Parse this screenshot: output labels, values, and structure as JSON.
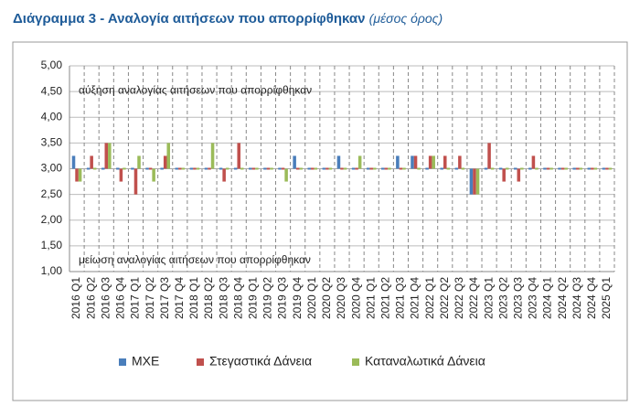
{
  "chart_data": {
    "type": "bar",
    "title": "Διάγραμμα 3 - Αναλογία αιτήσεων που απορρίφθηκαν",
    "subtitle": "(μέσος όρος)",
    "annotations": [
      "αύξηση αναλογίας αιτήσεων που απορρίφθηκαν",
      "μείωση αναλογίας αιτήσεων που απορρίφθηκαν"
    ],
    "baseline": 3,
    "categories": [
      "2016 Q1",
      "2016 Q2",
      "2016 Q3",
      "2016 Q4",
      "2017 Q1",
      "2017 Q2",
      "2017 Q3",
      "2017 Q4",
      "2018 Q1",
      "2018 Q2",
      "2018 Q3",
      "2018 Q4",
      "2019 Q1",
      "2019 Q2",
      "2019 Q3",
      "2019 Q4",
      "2020 Q1",
      "2020 Q2",
      "2020 Q3",
      "2020 Q4",
      "2021 Q1",
      "2021 Q2",
      "2021 Q3",
      "2021 Q4",
      "2022 Q1",
      "2022 Q2",
      "2022 Q3",
      "2022 Q4",
      "2023 Q1",
      "2023 Q2",
      "2023 Q3",
      "2023 Q4",
      "2024 Q1",
      "2024 Q2",
      "2024 Q3",
      "2024 Q4",
      "2025 Q1"
    ],
    "series": [
      {
        "name": "ΜΧΕ",
        "color": "#4a7ebb",
        "values": [
          3.25,
          3,
          3,
          3,
          3,
          3,
          3,
          3,
          3,
          3,
          3,
          3,
          3,
          3,
          3,
          3.25,
          3,
          3,
          3.25,
          3,
          3,
          3,
          3.25,
          3.25,
          3,
          3,
          3,
          2.5,
          3,
          3,
          3,
          3,
          3,
          3,
          3,
          3,
          3
        ]
      },
      {
        "name": "Στεγαστικά Δάνεια",
        "color": "#c0504d",
        "values": [
          2.75,
          3.25,
          3.5,
          2.75,
          2.5,
          3,
          3.25,
          3,
          3,
          3,
          2.75,
          3.5,
          3,
          3,
          3,
          3,
          3,
          3,
          3,
          3,
          3,
          3,
          3,
          3.25,
          3.25,
          3.25,
          3.25,
          2.5,
          3.5,
          2.75,
          2.75,
          3.25,
          3,
          3,
          3,
          3,
          3
        ]
      },
      {
        "name": "Καταναλωτικά Δάνεια",
        "color": "#9bbb59",
        "values": [
          2.75,
          3,
          3.5,
          3,
          3.25,
          2.75,
          3.5,
          3,
          3,
          3.5,
          3,
          3,
          3,
          3,
          2.75,
          3,
          3,
          3,
          3,
          3.25,
          3,
          3,
          3,
          3,
          3.25,
          3,
          3,
          2.5,
          3,
          3,
          3,
          3,
          3,
          3,
          3,
          3,
          3
        ]
      }
    ],
    "ylim": [
      1,
      5
    ],
    "yticks": [
      {
        "value": 1,
        "label": "1,00"
      },
      {
        "value": 1.5,
        "label": "1,50"
      },
      {
        "value": 2,
        "label": "2,00"
      },
      {
        "value": 2.5,
        "label": "2,50"
      },
      {
        "value": 3,
        "label": "3,00"
      },
      {
        "value": 3.5,
        "label": "3,50"
      },
      {
        "value": 4,
        "label": "4,00"
      },
      {
        "value": 4.5,
        "label": "4,50"
      },
      {
        "value": 5,
        "label": "5,00"
      }
    ],
    "grid": true,
    "legend": "bottom"
  }
}
